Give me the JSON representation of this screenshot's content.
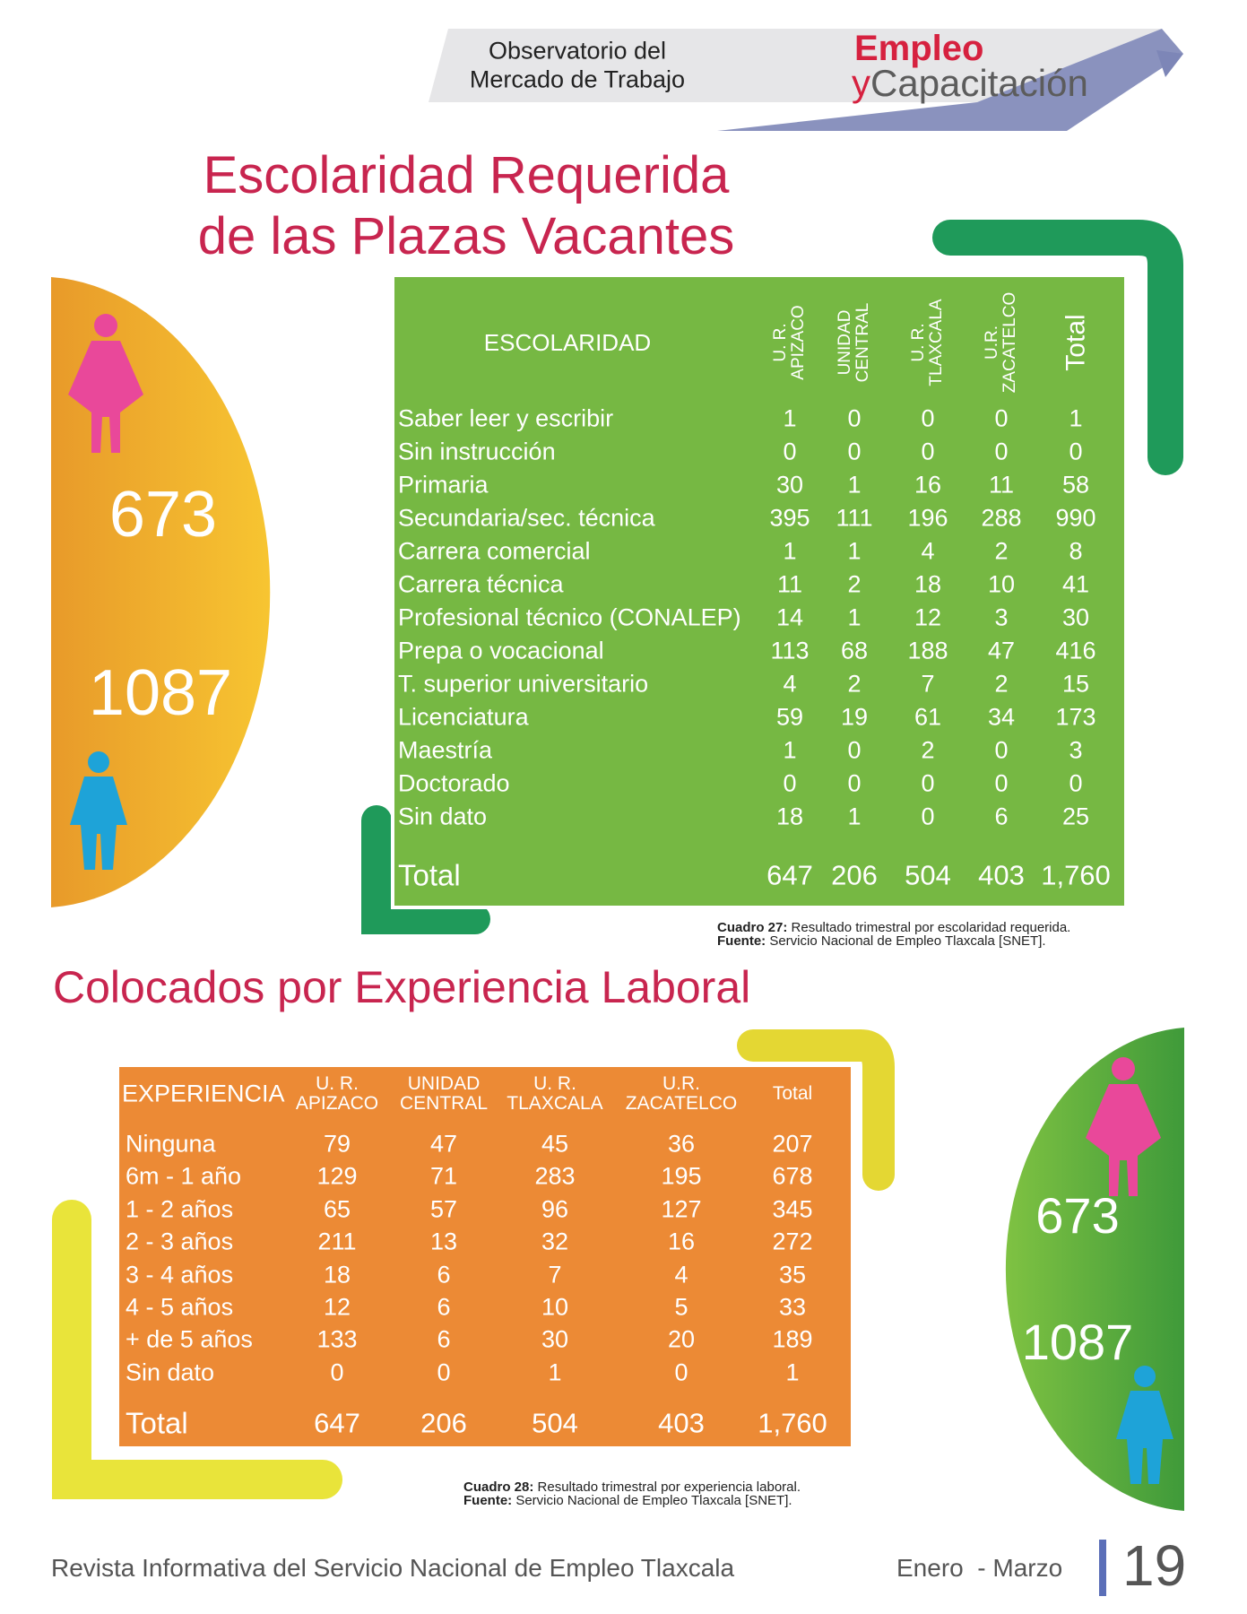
{
  "header": {
    "observatorio": [
      "Observatorio del",
      "Mercado de Trabajo"
    ],
    "brand_top": "Empleo",
    "brand_y": "y",
    "brand_bottom": "Capacitación"
  },
  "section1": {
    "title": [
      "Escolaridad Requerida",
      "de las Plazas Vacantes"
    ],
    "side": {
      "women": 673,
      "men": 1087
    },
    "table": {
      "label_header": "ESCOLARIDAD",
      "col_headers": [
        [
          "U. R.",
          "APIZACO"
        ],
        [
          "UNIDAD",
          "CENTRAL"
        ],
        [
          "U. R.",
          "TLAXCALA"
        ],
        [
          "U.R.",
          "ZACATELCO"
        ],
        [
          "Total"
        ]
      ],
      "rows": [
        [
          "Saber leer y escribir",
          1,
          0,
          0,
          0,
          1
        ],
        [
          "Sin instrucción",
          0,
          0,
          0,
          0,
          0
        ],
        [
          "Primaria",
          30,
          1,
          16,
          11,
          58
        ],
        [
          "Secundaria/sec. técnica",
          395,
          111,
          196,
          288,
          990
        ],
        [
          "Carrera comercial",
          1,
          1,
          4,
          2,
          8
        ],
        [
          "Carrera técnica",
          11,
          2,
          18,
          10,
          41
        ],
        [
          "Profesional técnico (CONALEP)",
          14,
          1,
          12,
          3,
          30
        ],
        [
          "Prepa o vocacional",
          113,
          68,
          188,
          47,
          416
        ],
        [
          "T. superior universitario",
          4,
          2,
          7,
          2,
          15
        ],
        [
          "Licenciatura",
          59,
          19,
          61,
          34,
          173
        ],
        [
          "Maestría",
          1,
          0,
          2,
          0,
          3
        ],
        [
          "Doctorado",
          0,
          0,
          0,
          0,
          0
        ],
        [
          "Sin dato",
          18,
          1,
          0,
          6,
          25
        ]
      ],
      "total": [
        "Total",
        647,
        206,
        504,
        403,
        "1,760"
      ]
    },
    "caption": {
      "label": "Cuadro 27:",
      "text": " Resultado trimestral por escolaridad requerida.",
      "source_label": "Fuente:",
      "source": " Servicio Nacional de Empleo Tlaxcala [SNET]."
    }
  },
  "section2": {
    "title": "Colocados por Experiencia Laboral",
    "side": {
      "women": 673,
      "men": 1087
    },
    "table": {
      "label_header": "EXPERIENCIA",
      "col_headers": [
        [
          "U. R.",
          "APIZACO"
        ],
        [
          "UNIDAD",
          "CENTRAL"
        ],
        [
          "U. R.",
          "TLAXCALA"
        ],
        [
          "U.R.",
          "ZACATELCO"
        ],
        [
          "Total"
        ]
      ],
      "rows": [
        [
          "Ninguna",
          79,
          47,
          45,
          36,
          207
        ],
        [
          "6m - 1 año",
          129,
          71,
          283,
          195,
          678
        ],
        [
          "1 - 2 años",
          65,
          57,
          96,
          127,
          345
        ],
        [
          "2 - 3 años",
          211,
          13,
          32,
          16,
          272
        ],
        [
          "3 - 4 años",
          18,
          6,
          7,
          4,
          35
        ],
        [
          "4 - 5 años",
          12,
          6,
          10,
          5,
          33
        ],
        [
          "+ de 5 años",
          133,
          6,
          30,
          20,
          189
        ],
        [
          "Sin dato",
          0,
          0,
          1,
          0,
          1
        ]
      ],
      "total": [
        "Total",
        647,
        206,
        504,
        403,
        "1,760"
      ]
    },
    "caption": {
      "label": "Cuadro 28:",
      "text": " Resultado trimestral por experiencia laboral.",
      "source_label": "Fuente:",
      "source": " Servicio Nacional de Empleo Tlaxcala [SNET]."
    }
  },
  "footer": {
    "text": "Revista Informativa del Servicio Nacional de Empleo Tlaxcala",
    "period": "Enero  - Marzo",
    "page": "19"
  }
}
